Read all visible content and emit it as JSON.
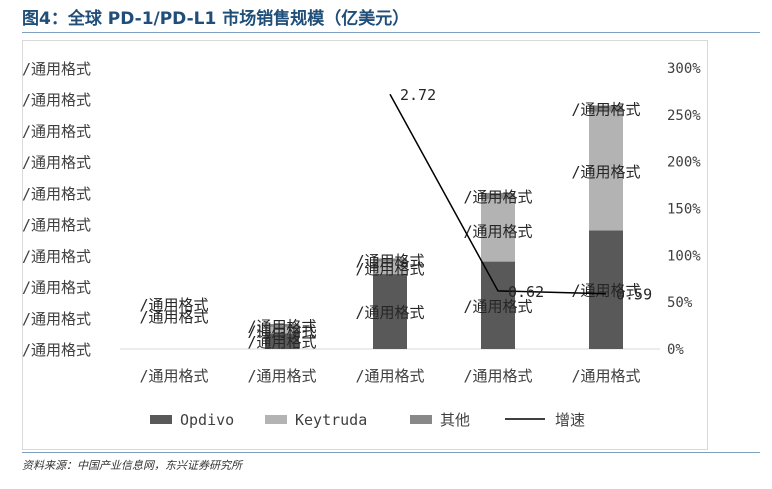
{
  "title": "图4：全球 PD-1/PD-L1 市场销售规模（亿美元）",
  "source": "资料来源：中国产业信息网，东兴证券研究所",
  "chart_data": {
    "type": "bar",
    "stacked": true,
    "categories": [
      "/通用格式",
      "/通用格式",
      "/通用格式",
      "/通用格式",
      "/通用格式"
    ],
    "left_axis_tick_labels": [
      "/通用格式",
      "/通用格式",
      "/通用格式",
      "/通用格式",
      "/通用格式",
      "/通用格式",
      "/通用格式",
      "/通用格式",
      "/通用格式",
      "/通用格式"
    ],
    "right_axis": {
      "ticks": [
        0,
        50,
        100,
        150,
        200,
        250,
        300
      ],
      "tick_labels": [
        "0%",
        "50%",
        "100%",
        "150%",
        "200%",
        "250%",
        "300%"
      ],
      "ylim": [
        0,
        300
      ]
    },
    "ylim": [
      0,
      90
    ],
    "series": [
      {
        "name": "Opdivo",
        "type": "bar",
        "color": "#595959",
        "values": [
          0,
          5,
          24,
          28,
          38
        ],
        "labels": [
          "",
          "/通用格式",
          "/通用格式",
          "/通用格式",
          "/通用格式"
        ]
      },
      {
        "name": "Keytruda",
        "type": "bar",
        "color": "#b3b3b3",
        "values": [
          0,
          2,
          4,
          20,
          38
        ],
        "labels": [
          "/通用格式",
          "/通用格式",
          "/通用格式",
          "/通用格式",
          "/通用格式"
        ]
      },
      {
        "name": "其他",
        "type": "bar",
        "color": "#888888",
        "values": [
          0,
          1,
          1,
          2,
          2
        ],
        "labels": [
          "/通用格式",
          "/通用格式",
          "/通用格式",
          "/通用格式",
          "/通用格式"
        ]
      },
      {
        "name": "增速",
        "type": "line",
        "axis": "right",
        "color": "#000000",
        "values": [
          null,
          null,
          272,
          62,
          59
        ],
        "labels": [
          "",
          "",
          "2.72",
          "0.62",
          "0.59"
        ]
      }
    ],
    "legend": "bottom",
    "grid": false
  }
}
